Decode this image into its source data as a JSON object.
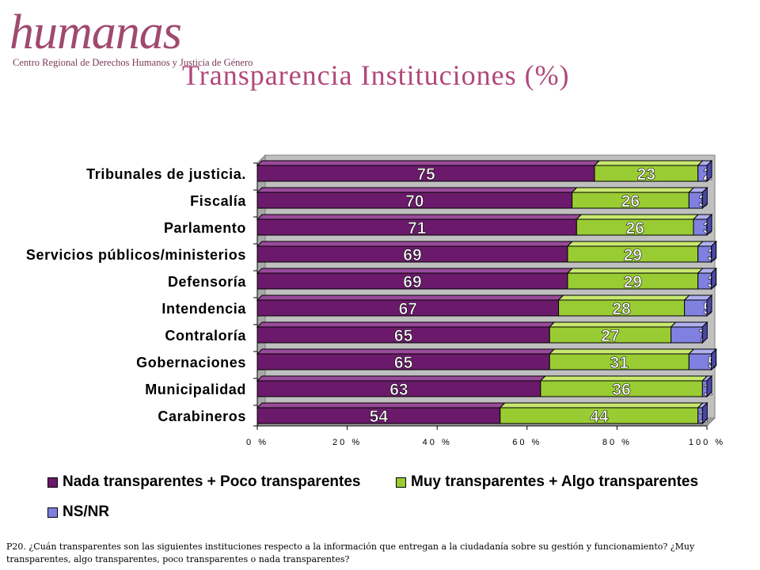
{
  "logo": {
    "wordmark": "humanas",
    "subtitle": "Centro Regional de Derechos Humanos y Justicia de Género"
  },
  "title": "Transparencia Instituciones (%)",
  "footnote": "P20. ¿Cuán transparentes son las siguientes instituciones respecto a la información que entregan a la ciudadanía sobre su gestión y funcionamiento? ¿Muy transparentes, algo transparentes, poco transparentes o nada transparentes?",
  "colors": {
    "nada": "#6b1a6b",
    "muy": "#99cc33",
    "nsnr": "#8080e0"
  },
  "chart_data": {
    "type": "bar",
    "orientation": "horizontal",
    "stacked": true,
    "percent_stacked": true,
    "categories": [
      "Tribunales de justicia.",
      "Fiscalía",
      "Parlamento",
      "Servicios públicos/ministerios",
      "Defensoría",
      "Intendencia",
      "Contraloría",
      "Gobernaciones",
      "Municipalidad",
      "Carabineros"
    ],
    "series": [
      {
        "name": "Nada transparentes + Poco transparentes",
        "values": [
          75,
          70,
          71,
          69,
          69,
          67,
          65,
          65,
          63,
          54
        ]
      },
      {
        "name": "Muy transparentes + Algo transparentes",
        "values": [
          23,
          26,
          26,
          29,
          29,
          28,
          27,
          31,
          36,
          44
        ]
      },
      {
        "name": "NS/NR",
        "values": [
          2,
          3,
          3,
          3,
          3,
          5,
          7,
          5,
          1,
          1
        ]
      }
    ],
    "xticks": [
      "0 %",
      "20 %",
      "40 %",
      "60 %",
      "80 %",
      "100 %"
    ],
    "xlim": [
      0,
      100
    ],
    "grid": false,
    "legend_position": "bottom"
  }
}
